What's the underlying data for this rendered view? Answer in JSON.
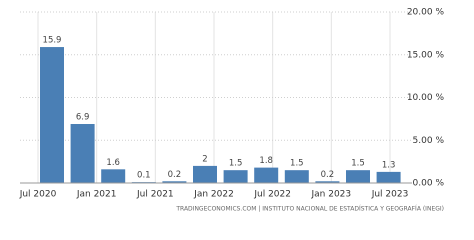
{
  "chart_data": {
    "type": "bar",
    "x_labels": [
      "Jul 2020",
      "Jan 2021",
      "Jul 2021",
      "Jan 2022",
      "Jul 2022",
      "Jan 2023",
      "Jul 2023"
    ],
    "values": [
      15.9,
      6.9,
      1.6,
      0.1,
      0.2,
      2,
      1.5,
      1.8,
      1.5,
      0.2,
      1.5,
      1.3
    ],
    "value_labels": [
      "15.9",
      "6.9",
      "1.6",
      "0.1",
      "0.2",
      "2",
      "1.5",
      "1.8",
      "1.5",
      "0.2",
      "1.5",
      "1.3"
    ],
    "color": "#4a7fb5",
    "ylim": [
      0,
      20
    ],
    "yticks": [
      {
        "value": 0,
        "label": "0.00 %"
      },
      {
        "value": 5,
        "label": "5.00 %"
      },
      {
        "value": 10,
        "label": "10.00 %"
      },
      {
        "value": 15,
        "label": "15.00 %"
      },
      {
        "value": 20,
        "label": "20.00 %"
      }
    ],
    "grid": true,
    "source": "TRADINGECONOMICS.COM | INSTITUTO NACIONAL DE ESTADÍSTICA Y GEOGRAFÍA (INEGI)"
  }
}
